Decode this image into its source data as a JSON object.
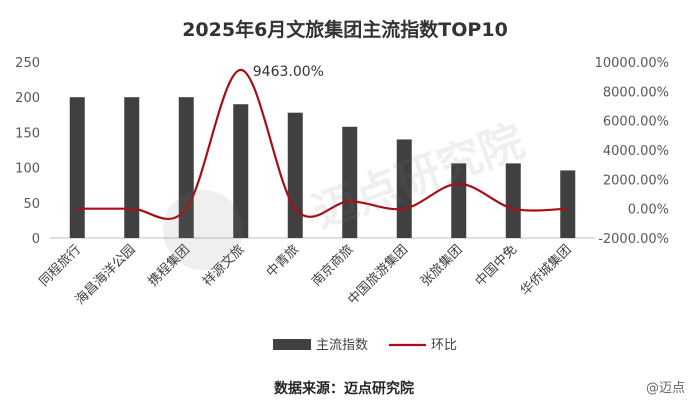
{
  "chart_data": {
    "type": "bar-line",
    "title": "2025年6月文旅集团主流指数TOP10",
    "categories": [
      "同程旅行",
      "海昌海洋公园",
      "携程集团",
      "祥源文旅",
      "中青旅",
      "南京商旅",
      "中国旅游集团",
      "张旅集团",
      "中国中免",
      "华侨城集团"
    ],
    "series": [
      {
        "name": "主流指数",
        "type": "bar",
        "axis": "left",
        "values": [
          200,
          200,
          200,
          190,
          178,
          158,
          140,
          106,
          106,
          96
        ]
      },
      {
        "name": "环比",
        "type": "line",
        "axis": "right",
        "smooth": true,
        "unit": "%",
        "values": [
          0,
          0,
          0,
          9463,
          0,
          500,
          0,
          1700,
          0,
          0
        ]
      }
    ],
    "y_left": {
      "min": 0,
      "max": 250,
      "ticks": [
        "0",
        "50",
        "100",
        "150",
        "200",
        "250"
      ]
    },
    "y_right": {
      "min": -2000,
      "max": 10000,
      "ticks": [
        "-2000.00%",
        "0.00%",
        "2000.00%",
        "4000.00%",
        "6000.00%",
        "8000.00%",
        "10000.00%"
      ]
    },
    "annotation": {
      "label": "9463.00%"
    },
    "legend": {
      "position": "bottom"
    },
    "grid": false,
    "colors": {
      "bar": "#404040",
      "line": "#a50f15"
    }
  },
  "source": "数据来源：迈点研究院",
  "watermark": {
    "brand": "迈点研究院",
    "corner": "@迈点"
  }
}
